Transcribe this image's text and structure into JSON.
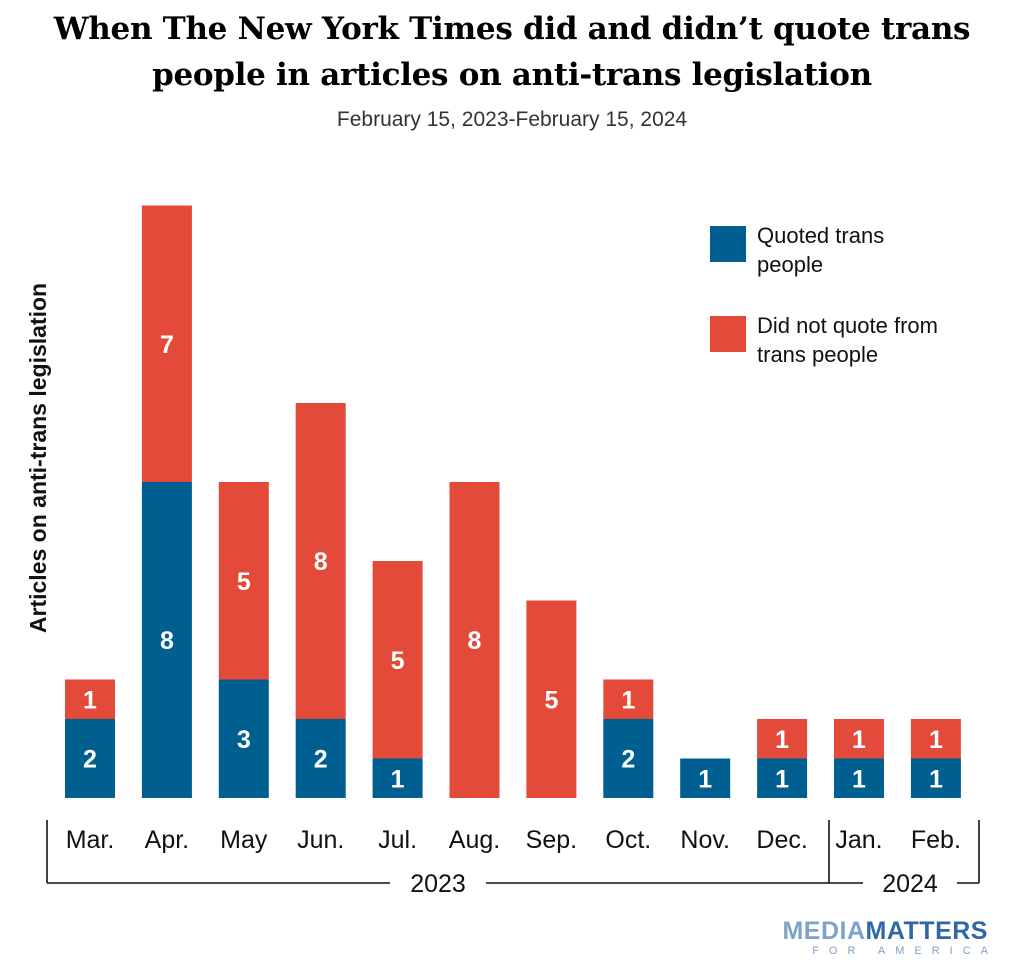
{
  "header": {
    "title_line1": "When The New York Times did and didn’t quote trans",
    "title_line2": "people in articles on anti-trans legislation",
    "subtitle": "February 15, 2023-February 15, 2024"
  },
  "brand": {
    "line1_a": "MEDIA",
    "line1_b": "MATTERS",
    "line2": "FOR AMERICA"
  },
  "chart_data": {
    "type": "bar",
    "stacked": true,
    "ylabel": "Articles on anti-trans legislation",
    "categories": [
      "Mar.",
      "Apr.",
      "May",
      "Jun.",
      "Jul.",
      "Aug.",
      "Sep.",
      "Oct.",
      "Nov.",
      "Dec.",
      "Jan.",
      "Feb."
    ],
    "series": [
      {
        "name": "Quoted trans people",
        "color": "#005f91",
        "values": [
          2,
          8,
          3,
          2,
          1,
          0,
          0,
          2,
          1,
          1,
          1,
          1
        ]
      },
      {
        "name": "Did not quote from trans people",
        "color": "#e34a39",
        "values": [
          1,
          7,
          5,
          8,
          5,
          8,
          5,
          1,
          0,
          1,
          1,
          1
        ]
      }
    ],
    "year_groups": [
      {
        "label": "2023",
        "first": 0,
        "last": 9
      },
      {
        "label": "2024",
        "first": 10,
        "last": 11
      }
    ],
    "ylim": [
      0,
      15
    ],
    "grid": false,
    "legend_position": "top-right"
  }
}
